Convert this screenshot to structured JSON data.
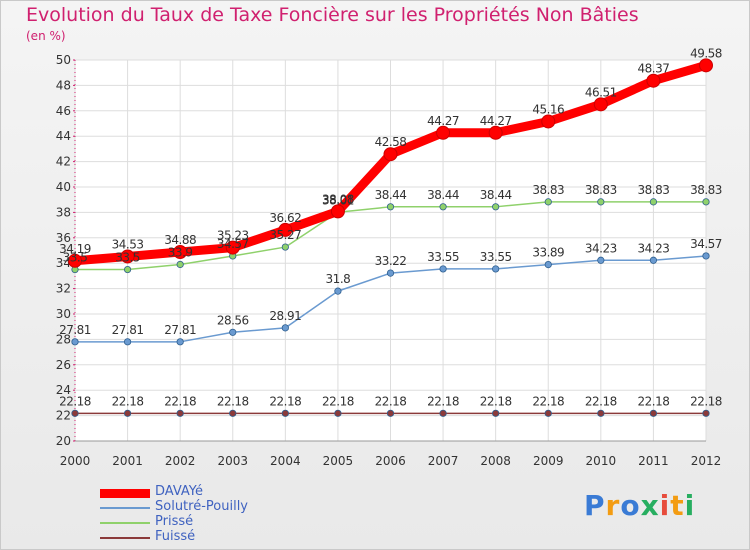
{
  "title": "Evolution du Taux de Taxe Foncière sur les Propriétés Non Bâties",
  "unit": "(en %)",
  "logo": {
    "text": "Proxiti",
    "colors": [
      "#3a7bd5",
      "#f39c12",
      "#3a7bd5",
      "#27ae60",
      "#e74c3c",
      "#f39c12",
      "#27ae60"
    ]
  },
  "chart_data": {
    "type": "line",
    "title": "Evolution du Taux de Taxe Foncière sur les Propriétés Non Bâties",
    "ylabel": "(en %)",
    "xlabel": "",
    "ylim": [
      20,
      50
    ],
    "yticks": [
      20,
      22,
      24,
      26,
      28,
      30,
      32,
      34,
      36,
      38,
      40,
      42,
      44,
      46,
      48,
      50
    ],
    "grid": true,
    "legend": "bottom-left",
    "x": [
      "2000",
      "2001",
      "2002",
      "2003",
      "2004",
      "2005",
      "2006",
      "2007",
      "2008",
      "2009",
      "2010",
      "2011",
      "2012"
    ],
    "series": [
      {
        "name": "DAVAYé",
        "color": "#ff0000",
        "width": 9,
        "labels": [
          "34.19",
          "34.53",
          "34.88",
          "35.23",
          "36.62",
          "38.08",
          "42.58",
          "44.27",
          "44.27",
          "45.16",
          "46.51",
          "48.37",
          "49.58"
        ],
        "values": [
          34.19,
          34.53,
          34.88,
          35.23,
          36.62,
          38.08,
          42.58,
          44.27,
          44.27,
          45.16,
          46.51,
          48.37,
          49.58
        ]
      },
      {
        "name": "Solutré-Pouilly",
        "color": "#6a9ad0",
        "width": 1.5,
        "labels": [
          "27.81",
          "27.81",
          "27.81",
          "28.56",
          "28.91",
          "31.8",
          "33.22",
          "33.55",
          "33.55",
          "33.89",
          "34.23",
          "34.23",
          "34.57"
        ],
        "values": [
          27.81,
          27.81,
          27.81,
          28.56,
          28.91,
          31.8,
          33.22,
          33.55,
          33.55,
          33.89,
          34.23,
          34.23,
          34.57
        ]
      },
      {
        "name": "Prissé",
        "color": "#8fd16b",
        "width": 1.5,
        "labels": [
          "33.5",
          "33.5",
          "33.9",
          "34.57",
          "35.27",
          "38.01",
          "38.44",
          "38.44",
          "38.44",
          "38.83",
          "38.83",
          "38.83",
          "38.83"
        ],
        "values": [
          33.5,
          33.5,
          33.9,
          34.57,
          35.27,
          38.01,
          38.44,
          38.44,
          38.44,
          38.83,
          38.83,
          38.83,
          38.83
        ]
      },
      {
        "name": "Fuissé",
        "color": "#8b3a3a",
        "width": 1.5,
        "labels": [
          "22.18",
          "22.18",
          "22.18",
          "22.18",
          "22.18",
          "22.18",
          "22.18",
          "22.18",
          "22.18",
          "22.18",
          "22.18",
          "22.18",
          "22.18"
        ],
        "values": [
          22.18,
          22.18,
          22.18,
          22.18,
          22.18,
          22.18,
          22.18,
          22.18,
          22.18,
          22.18,
          22.18,
          22.18,
          22.18
        ]
      }
    ]
  }
}
